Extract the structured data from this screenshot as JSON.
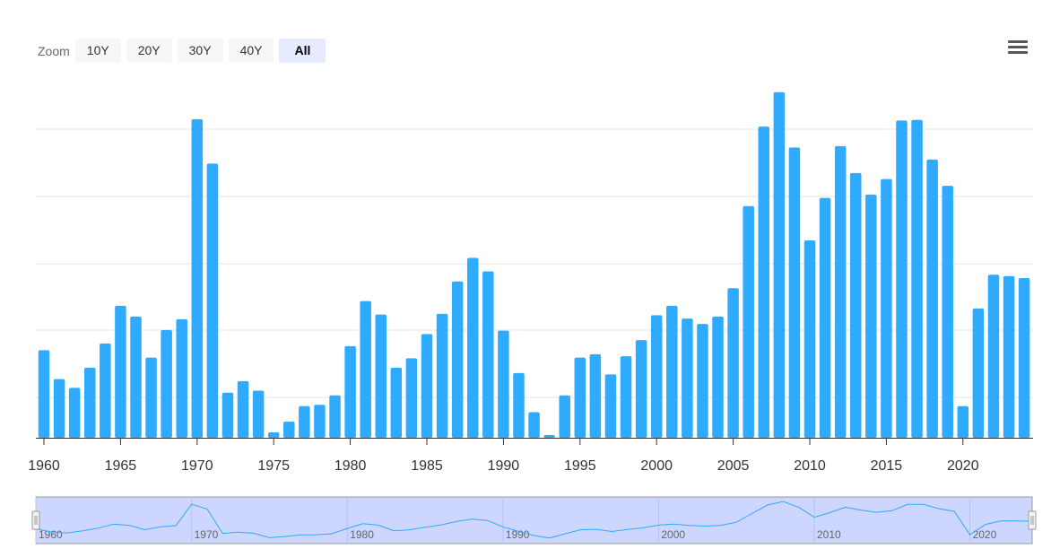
{
  "toolbar": {
    "zoom_label": "Zoom",
    "zoom_options": [
      "10Y",
      "20Y",
      "30Y",
      "40Y",
      "All"
    ],
    "selected": "All",
    "menu_icon": "hamburger-menu-icon"
  },
  "chart_data": {
    "type": "bar",
    "title": "",
    "xlabel": "",
    "ylabel": "",
    "bar_color": "#2eaaff",
    "grid": true,
    "xticks": [
      1960,
      1965,
      1970,
      1975,
      1980,
      1985,
      1990,
      1995,
      2000,
      2005,
      2010,
      2015,
      2020
    ],
    "x": [
      1960,
      1961,
      1962,
      1963,
      1964,
      1965,
      1966,
      1967,
      1968,
      1969,
      1970,
      1971,
      1972,
      1973,
      1974,
      1975,
      1976,
      1977,
      1978,
      1979,
      1980,
      1981,
      1982,
      1983,
      1984,
      1985,
      1986,
      1987,
      1988,
      1989,
      1990,
      1991,
      1992,
      1993,
      1994,
      1995,
      1996,
      1997,
      1998,
      1999,
      2000,
      2001,
      2002,
      2003,
      2004,
      2005,
      2006,
      2007,
      2008,
      2009,
      2010,
      2011,
      2012,
      2013,
      2014,
      2015,
      2016,
      2017,
      2018,
      2019,
      2020,
      2021,
      2022,
      2023,
      2024
    ],
    "values": [
      1.3,
      0.87,
      0.74,
      1.04,
      1.4,
      1.96,
      1.8,
      1.19,
      1.6,
      1.76,
      4.73,
      4.07,
      0.67,
      0.84,
      0.7,
      0.08,
      0.24,
      0.47,
      0.49,
      0.63,
      1.36,
      2.03,
      1.83,
      1.04,
      1.18,
      1.54,
      1.84,
      2.32,
      2.67,
      2.47,
      1.59,
      0.96,
      0.38,
      0.04,
      0.63,
      1.19,
      1.24,
      0.94,
      1.21,
      1.45,
      1.82,
      1.96,
      1.77,
      1.69,
      1.8,
      2.22,
      3.44,
      4.62,
      5.13,
      4.31,
      2.93,
      3.56,
      4.33,
      3.93,
      3.61,
      3.84,
      4.71,
      4.72,
      4.13,
      3.74,
      0.47,
      1.92,
      2.42,
      2.4,
      2.37
    ],
    "ylim": [
      0,
      5.5
    ],
    "navigator": {
      "labels": [
        1960,
        1970,
        1980,
        1990,
        2000,
        2010,
        2020
      ]
    }
  }
}
